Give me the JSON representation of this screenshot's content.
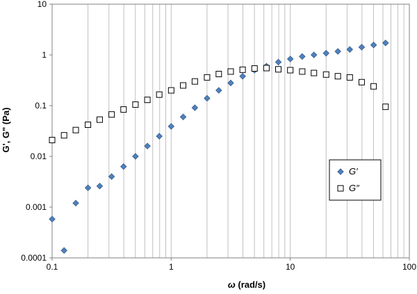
{
  "chart_data": {
    "type": "scatter",
    "title": "",
    "xlabel_symbol": "ω",
    "xlabel_unit": " (rad/s)",
    "ylabel": "G', G\" (Pa)",
    "xscale": "log",
    "yscale": "log",
    "xlim": [
      0.1,
      100
    ],
    "ylim": [
      0.0001,
      10
    ],
    "grid": "x-major-minor",
    "legend_position": "right-middle",
    "x_ticks": [
      "0.1",
      "1",
      "10",
      "100"
    ],
    "y_ticks": [
      "0.0001",
      "0.001",
      "0.01",
      "0.1",
      "1",
      "10"
    ],
    "series": [
      {
        "name": "G′",
        "marker": "diamond",
        "color": "#4f81bd",
        "edge_color": "#385d8a",
        "points": [
          [
            0.1,
            0.00058
          ],
          [
            0.126,
            0.00014
          ],
          [
            0.158,
            0.0012
          ],
          [
            0.2,
            0.0024
          ],
          [
            0.251,
            0.0026
          ],
          [
            0.316,
            0.004
          ],
          [
            0.398,
            0.0063
          ],
          [
            0.501,
            0.01
          ],
          [
            0.631,
            0.016
          ],
          [
            0.794,
            0.025
          ],
          [
            1.0,
            0.039
          ],
          [
            1.26,
            0.06
          ],
          [
            1.58,
            0.091
          ],
          [
            2.0,
            0.14
          ],
          [
            2.51,
            0.2
          ],
          [
            3.16,
            0.28
          ],
          [
            3.98,
            0.38
          ],
          [
            5.01,
            0.5
          ],
          [
            6.31,
            0.6
          ],
          [
            7.94,
            0.72
          ],
          [
            10.0,
            0.83
          ],
          [
            12.6,
            0.93
          ],
          [
            15.8,
            1.0
          ],
          [
            20.0,
            1.08
          ],
          [
            25.1,
            1.17
          ],
          [
            31.6,
            1.28
          ],
          [
            39.8,
            1.42
          ],
          [
            50.1,
            1.57
          ],
          [
            63.1,
            1.72
          ]
        ]
      },
      {
        "name": "G″",
        "marker": "square-open",
        "color": "#ffffff",
        "edge_color": "#000000",
        "points": [
          [
            0.1,
            0.021
          ],
          [
            0.126,
            0.026
          ],
          [
            0.158,
            0.033
          ],
          [
            0.2,
            0.042
          ],
          [
            0.251,
            0.053
          ],
          [
            0.316,
            0.067
          ],
          [
            0.398,
            0.084
          ],
          [
            0.501,
            0.105
          ],
          [
            0.631,
            0.13
          ],
          [
            0.794,
            0.165
          ],
          [
            1.0,
            0.2
          ],
          [
            1.26,
            0.25
          ],
          [
            1.58,
            0.3
          ],
          [
            2.0,
            0.36
          ],
          [
            2.51,
            0.42
          ],
          [
            3.16,
            0.47
          ],
          [
            3.98,
            0.51
          ],
          [
            5.01,
            0.54
          ],
          [
            6.31,
            0.55
          ],
          [
            7.94,
            0.52
          ],
          [
            10.0,
            0.5
          ],
          [
            12.6,
            0.47
          ],
          [
            15.8,
            0.44
          ],
          [
            20.0,
            0.41
          ],
          [
            25.1,
            0.38
          ],
          [
            31.6,
            0.36
          ],
          [
            39.8,
            0.29
          ],
          [
            50.1,
            0.24
          ],
          [
            63.1,
            0.095
          ]
        ]
      }
    ]
  }
}
